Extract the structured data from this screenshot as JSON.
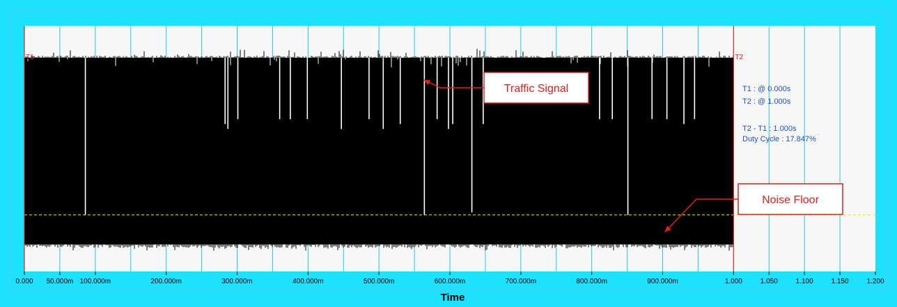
{
  "chart_data": {
    "type": "line",
    "xlabel": "Time",
    "xlim": [
      0,
      1.2
    ],
    "x_ticks": [
      {
        "value": 0,
        "label": "0.000"
      },
      {
        "value": 0.05,
        "label": "50.000m"
      },
      {
        "value": 0.1,
        "label": "100.000m"
      },
      {
        "value": 0.2,
        "label": "200.000m"
      },
      {
        "value": 0.3,
        "label": "300.000m"
      },
      {
        "value": 0.4,
        "label": "400.000m"
      },
      {
        "value": 0.5,
        "label": "500.000m"
      },
      {
        "value": 0.6,
        "label": "600.000m"
      },
      {
        "value": 0.7,
        "label": "700.000m"
      },
      {
        "value": 0.8,
        "label": "800.000m"
      },
      {
        "value": 0.9,
        "label": "900.000m"
      },
      {
        "value": 1.0,
        "label": "1.000"
      },
      {
        "value": 1.05,
        "label": "1.050"
      },
      {
        "value": 1.1,
        "label": "1.100"
      },
      {
        "value": 1.15,
        "label": "1.150"
      },
      {
        "value": 1.2,
        "label": "1.200"
      }
    ],
    "grid_x": [
      0.05,
      0.1,
      0.15,
      0.2,
      0.25,
      0.3,
      0.35,
      0.4,
      0.45,
      0.5,
      0.55,
      0.6,
      0.65,
      0.7,
      0.75,
      0.8,
      0.85,
      0.9,
      0.95,
      1.05,
      1.1,
      1.15
    ],
    "signal": {
      "start": 0,
      "end": 1.0,
      "high_level": 0.87,
      "low_level": 0.11
    },
    "noise_floor_level": 0.23,
    "gaps": [
      {
        "x": 0.086,
        "depth": 0.23
      },
      {
        "x": 0.283,
        "depth": 0.6
      },
      {
        "x": 0.287,
        "depth": 0.58
      },
      {
        "x": 0.301,
        "depth": 0.62
      },
      {
        "x": 0.36,
        "depth": 0.62
      },
      {
        "x": 0.375,
        "depth": 0.62
      },
      {
        "x": 0.399,
        "depth": 0.62
      },
      {
        "x": 0.447,
        "depth": 0.58
      },
      {
        "x": 0.486,
        "depth": 0.62
      },
      {
        "x": 0.506,
        "depth": 0.58
      },
      {
        "x": 0.53,
        "depth": 0.6
      },
      {
        "x": 0.564,
        "depth": 0.23
      },
      {
        "x": 0.582,
        "depth": 0.62
      },
      {
        "x": 0.598,
        "depth": 0.58
      },
      {
        "x": 0.604,
        "depth": 0.6
      },
      {
        "x": 0.631,
        "depth": 0.24
      },
      {
        "x": 0.647,
        "depth": 0.6
      },
      {
        "x": 0.811,
        "depth": 0.62
      },
      {
        "x": 0.829,
        "depth": 0.62
      },
      {
        "x": 0.851,
        "depth": 0.23
      },
      {
        "x": 0.885,
        "depth": 0.62
      },
      {
        "x": 0.906,
        "depth": 0.62
      },
      {
        "x": 0.93,
        "depth": 0.6
      },
      {
        "x": 0.945,
        "depth": 0.62
      }
    ],
    "markers": [
      {
        "name": "T1",
        "x": 0
      },
      {
        "name": "T2",
        "x": 1.0
      }
    ],
    "callouts": [
      {
        "text": "Traffic Signal",
        "target_x": 0.563,
        "target_y": 0.78
      },
      {
        "text": "Noise Floor",
        "target_x": 0.903,
        "target_y": 0.16
      }
    ]
  },
  "readout": {
    "t1": "T1 : @ 0.000s",
    "t2": "T2 : @ 1.000s",
    "delta": "T2 - T1 : 1.000s",
    "duty": "Duty Cycle : 17.847%"
  },
  "colors": {
    "frame": "#1ee0ff",
    "plot_background": "#f7f7f7",
    "grid": "#1ec8ef",
    "signal": "#000000",
    "marker": "#ee1c1c",
    "noise_floor": "#f2e22a",
    "readout_text": "#1f4fd0",
    "callout": "#e0201a"
  }
}
